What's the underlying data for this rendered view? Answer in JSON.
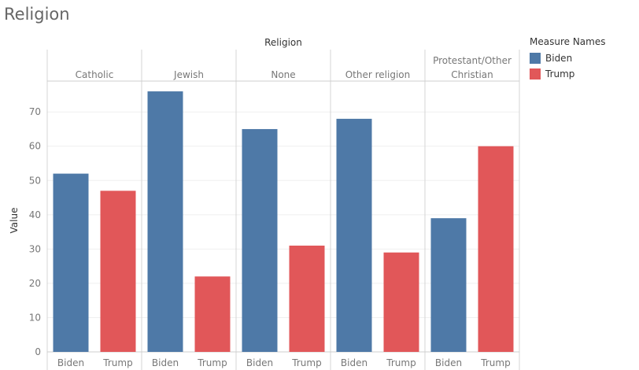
{
  "title": "Religion",
  "chart_data": {
    "type": "bar",
    "header": "Religion",
    "ylabel": "Value",
    "ylim": [
      0,
      79
    ],
    "yticks": [
      0,
      10,
      20,
      30,
      40,
      50,
      60,
      70
    ],
    "measures": [
      "Biden",
      "Trump"
    ],
    "colors": {
      "Biden": "#4e79a7",
      "Trump": "#e15759"
    },
    "categories": [
      {
        "label": [
          "Catholic"
        ],
        "values": [
          52,
          47
        ]
      },
      {
        "label": [
          "Jewish"
        ],
        "values": [
          76,
          22
        ]
      },
      {
        "label": [
          "None"
        ],
        "values": [
          65,
          31
        ]
      },
      {
        "label": [
          "Other religion"
        ],
        "values": [
          68,
          29
        ]
      },
      {
        "label": [
          "Protestant/Other",
          "Christian"
        ],
        "values": [
          39,
          60
        ]
      }
    ]
  },
  "legend": {
    "title": "Measure Names",
    "items": [
      {
        "label": "Biden",
        "color": "#4e79a7"
      },
      {
        "label": "Trump",
        "color": "#e15759"
      }
    ]
  }
}
